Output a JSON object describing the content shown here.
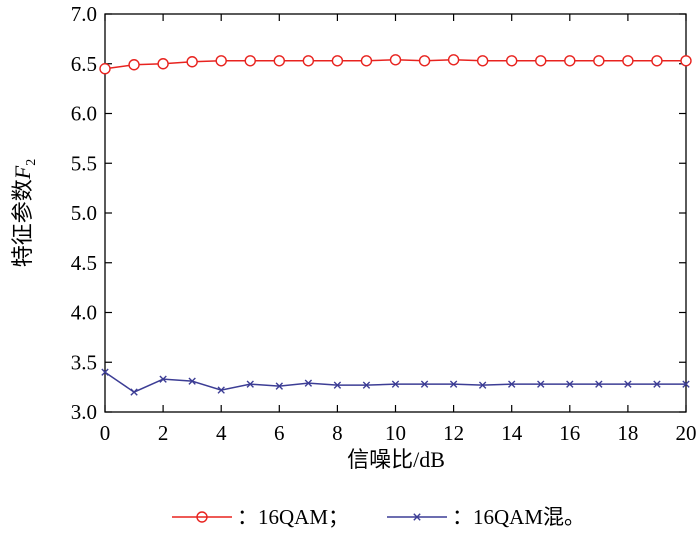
{
  "chart_data": {
    "type": "line",
    "xlabel": "信噪比/dB",
    "ylabel": "特征参数",
    "ylabel_symbol": "F",
    "ylabel_subscript": "2",
    "xlim": [
      0,
      20
    ],
    "ylim": [
      3.0,
      7.0
    ],
    "xticks": [
      "0",
      "2",
      "4",
      "6",
      "8",
      "10",
      "12",
      "14",
      "16",
      "18",
      "20"
    ],
    "yticks": [
      "3.0",
      "3.5",
      "4.0",
      "4.5",
      "5.0",
      "5.5",
      "6.0",
      "6.5",
      "7.0"
    ],
    "x": [
      0,
      1,
      2,
      3,
      4,
      5,
      6,
      7,
      8,
      9,
      10,
      11,
      12,
      13,
      14,
      15,
      16,
      17,
      18,
      19,
      20
    ],
    "series": [
      {
        "name": "：16QAM；",
        "color": "#e8231f",
        "marker": "circle",
        "values": [
          6.45,
          6.49,
          6.5,
          6.52,
          6.53,
          6.53,
          6.53,
          6.53,
          6.53,
          6.53,
          6.54,
          6.53,
          6.54,
          6.53,
          6.53,
          6.53,
          6.53,
          6.53,
          6.53,
          6.53,
          6.53
        ]
      },
      {
        "name": "：16QAM混。",
        "color": "#3c3d95",
        "marker": "x",
        "values": [
          3.4,
          3.2,
          3.33,
          3.31,
          3.22,
          3.28,
          3.26,
          3.29,
          3.27,
          3.27,
          3.28,
          3.28,
          3.28,
          3.27,
          3.28,
          3.28,
          3.28,
          3.28,
          3.28,
          3.28,
          3.28
        ]
      }
    ],
    "grid": false,
    "legend_position": "bottom"
  }
}
